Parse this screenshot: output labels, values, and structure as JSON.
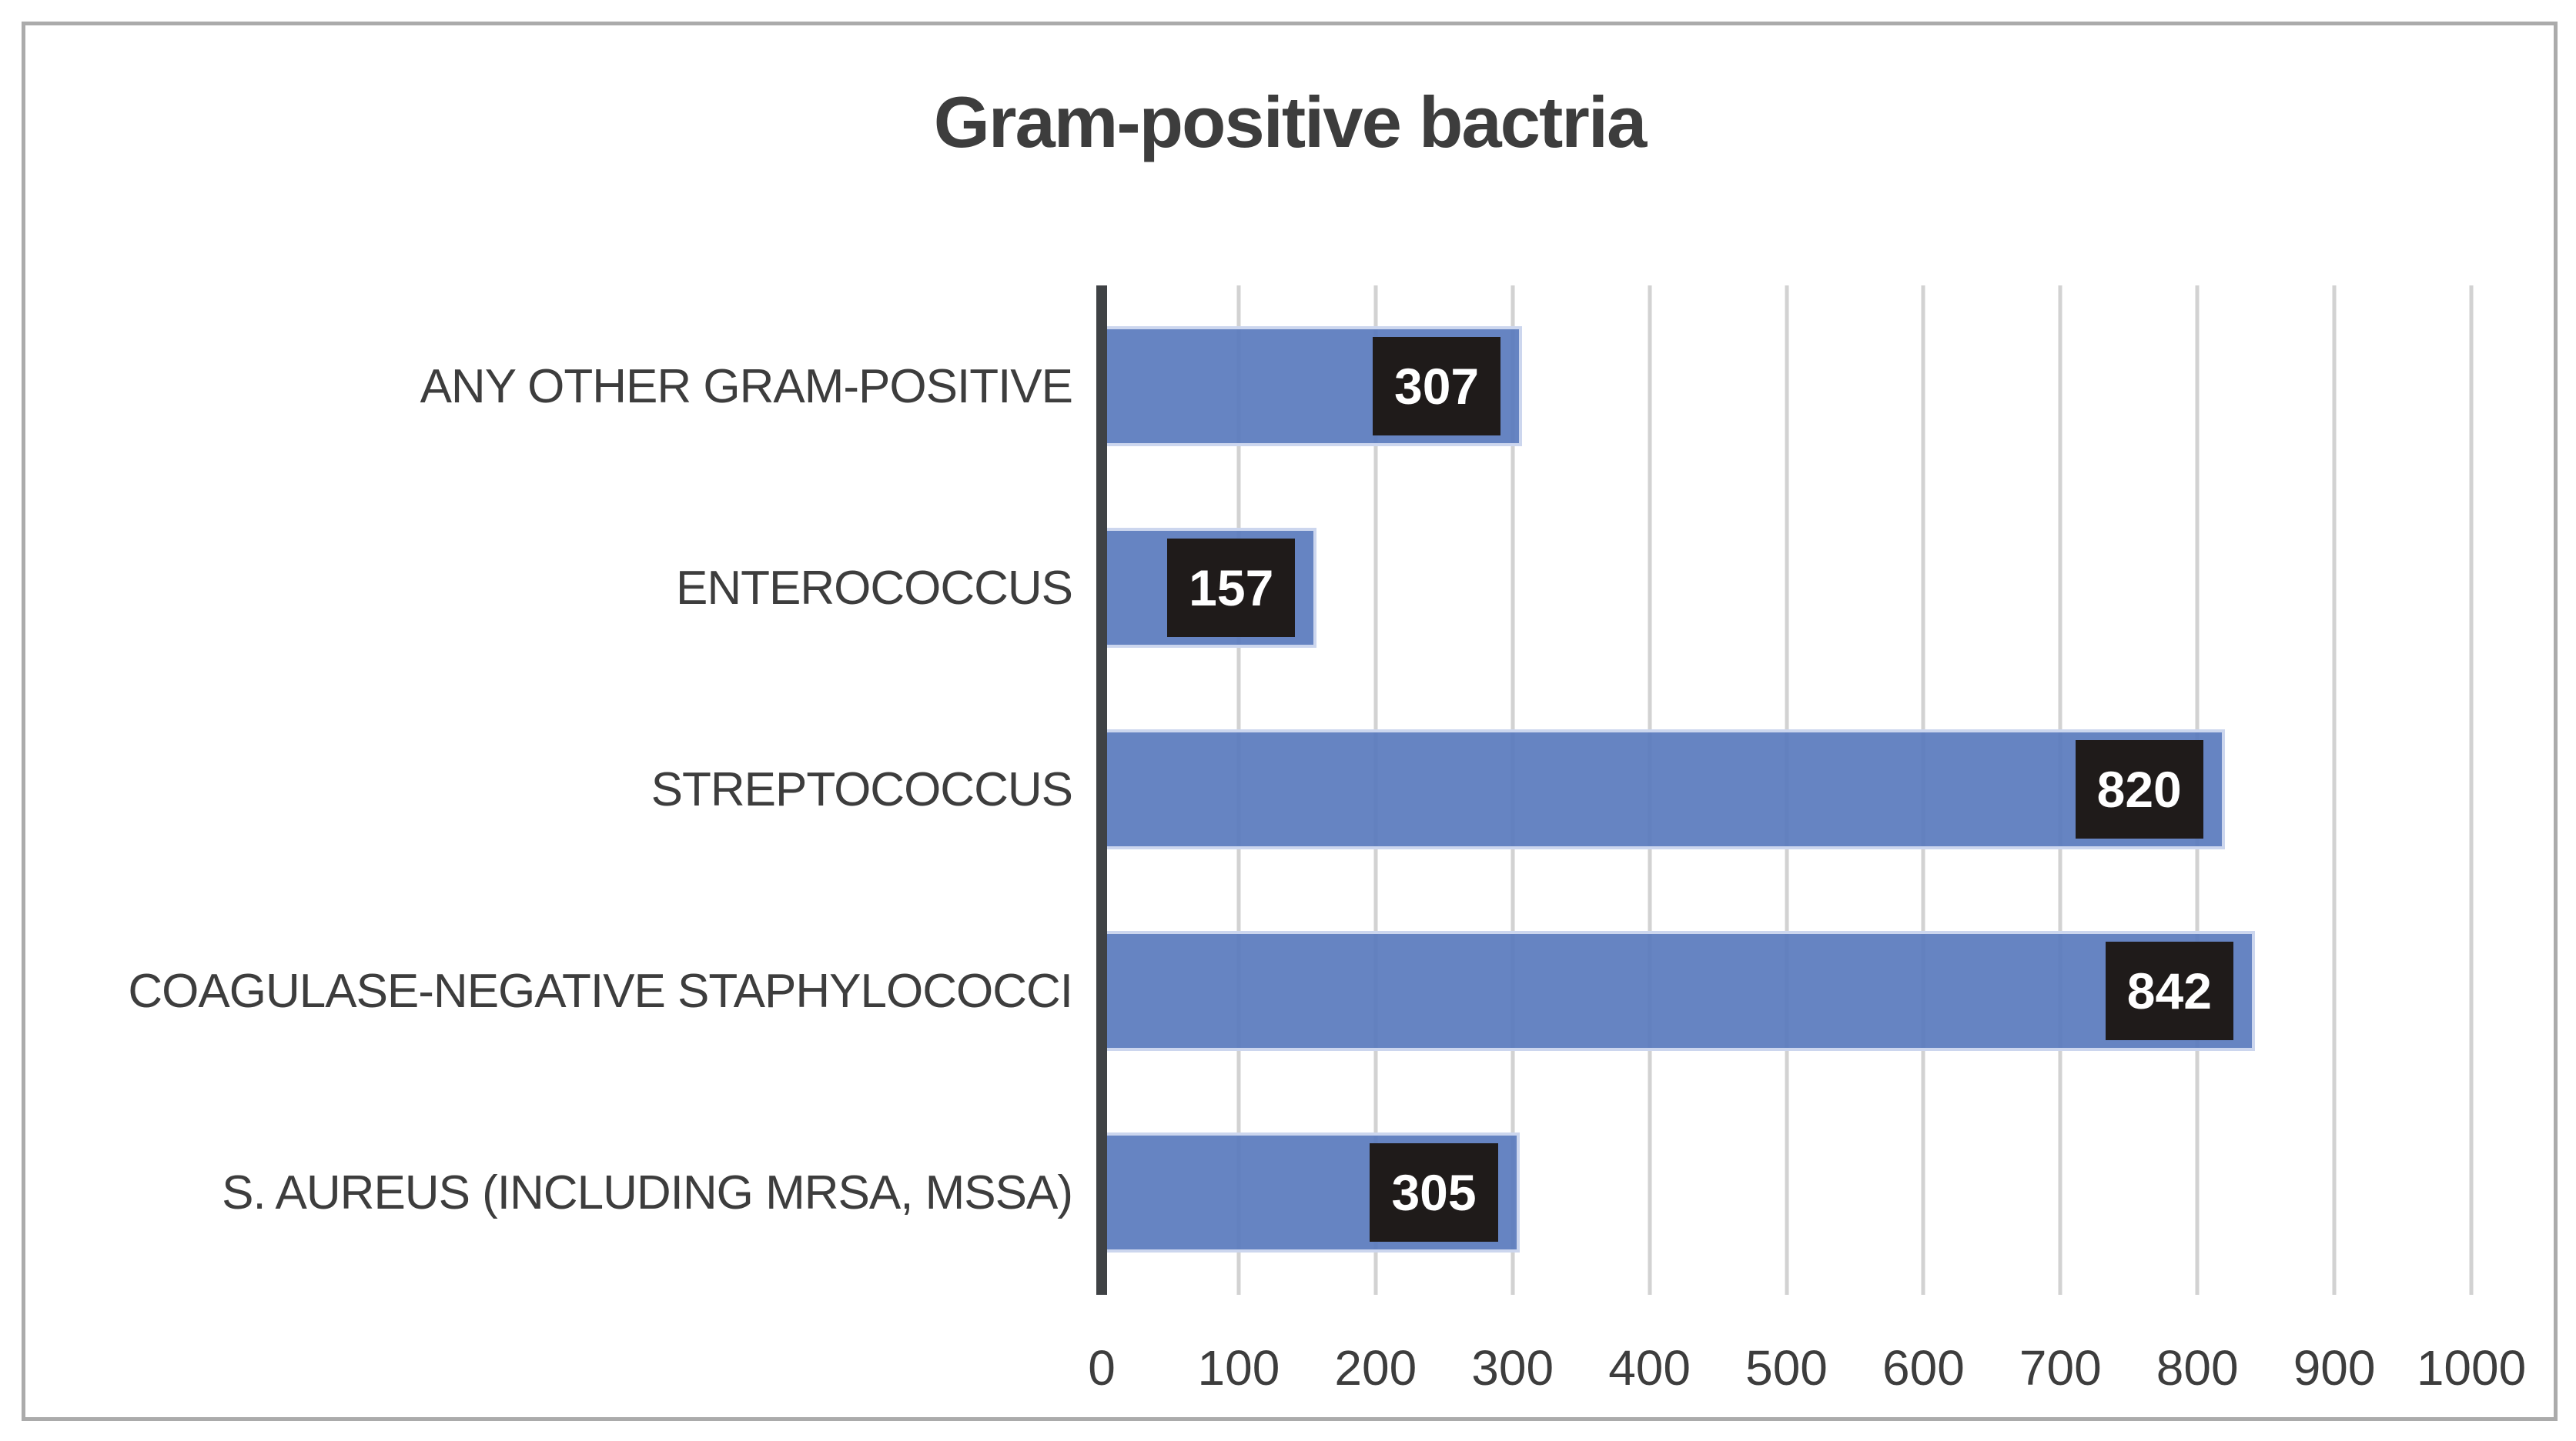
{
  "title": "Gram-positive bactria",
  "chart_data": {
    "type": "bar",
    "orientation": "horizontal",
    "title": "Gram-positive bactria",
    "order": "top-to-bottom",
    "categories": [
      "ANY OTHER GRAM-POSITIVE",
      "ENTEROCOCCUS",
      "STREPTOCOCCUS",
      "COAGULASE-NEGATIVE STAPHYLOCOCCI",
      "S. AUREUS (INCLUDING MRSA, MSSA)"
    ],
    "values": [
      307,
      157,
      820,
      842,
      305
    ],
    "data_labels": [
      "307",
      "157",
      "820",
      "842",
      "305"
    ],
    "data_label_style": "inside-end, white bold text on near-black box",
    "xlabel": "",
    "ylabel": "",
    "xlim": [
      0,
      1000
    ],
    "xticks": [
      0,
      100,
      200,
      300,
      400,
      500,
      600,
      700,
      800,
      900,
      1000
    ],
    "xtick_labels": [
      "0",
      "100",
      "200",
      "300",
      "400",
      "500",
      "600",
      "700",
      "800",
      "900",
      "1000"
    ],
    "grid": "vertical gridlines on",
    "legend": "none"
  },
  "colors": {
    "bar_fill": "#6684c2",
    "bar_edge": "#ccd6ee",
    "value_box_bg": "#1f1b1a",
    "value_box_text": "#ffffff",
    "gridline": "#d2d2d2",
    "category_axis_line": "#3f4245",
    "text": "#3d3d3d",
    "frame_border": "#ababab",
    "background": "#ffffff"
  }
}
